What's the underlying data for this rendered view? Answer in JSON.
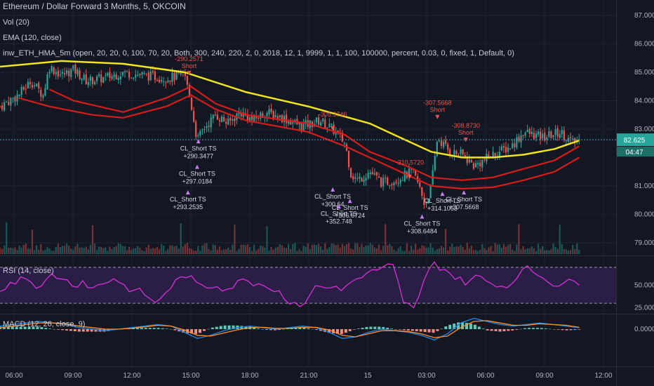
{
  "header": {
    "title": "Ethereum / Dollar Forward 3 Months, 5, OKCOIN",
    "vol_label": "Vol (20)",
    "ema_label": "EMA (120, close)",
    "strategy_label": "inw_ETH_HMA_5m (open, 20, 20, 0, 100, 70, 20, Both, 300, 240, 220, 2, 0, 2018, 12, 1, 9999, 1, 1, 100, 100000, percent, 0.03, 0, fixed, 1, Default, 0)",
    "rsi_label": "RSI (14, close)",
    "macd_label": "MACD (12, 26, close, 9)"
  },
  "colors": {
    "background": "#131722",
    "grid": "#1f2535",
    "candle_up": "#26a69a",
    "candle_down": "#ef5350",
    "ema": "#f0e422",
    "hma": "#d81b1b",
    "rsi": "#d532d5",
    "rsi_band": "#2a1d46",
    "macd": "#1e88e5",
    "signal": "#ff8f2c",
    "trade_entry": "#ef5350",
    "trade_exit": "#c97ef0"
  },
  "chart_data": [
    {
      "type": "candlestick",
      "pane": "price",
      "ylim": [
        78.6,
        87.3
      ],
      "yticks": [
        "87.000",
        "86.000",
        "85.000",
        "84.000",
        "83.000",
        "81.000",
        "80.000",
        "79.000"
      ],
      "last_price": "82.625",
      "countdown": "04:47",
      "x_ticks": [
        "06:00",
        "09:00",
        "12:00",
        "15:00",
        "18:00",
        "21:00",
        "15",
        "03:00",
        "06:00",
        "09:00",
        "12:00"
      ],
      "close_path": [
        [
          0,
          83.8
        ],
        [
          0.03,
          84.2
        ],
        [
          0.05,
          84.7
        ],
        [
          0.07,
          84.2
        ],
        [
          0.08,
          85.2
        ],
        [
          0.1,
          84.9
        ],
        [
          0.12,
          85.1
        ],
        [
          0.14,
          84.7
        ],
        [
          0.17,
          84.8
        ],
        [
          0.2,
          85.0
        ],
        [
          0.23,
          84.9
        ],
        [
          0.27,
          84.8
        ],
        [
          0.3,
          84.9
        ],
        [
          0.31,
          83.9
        ],
        [
          0.32,
          82.6
        ],
        [
          0.33,
          83.0
        ],
        [
          0.35,
          83.5
        ],
        [
          0.37,
          83.2
        ],
        [
          0.39,
          83.6
        ],
        [
          0.41,
          83.3
        ],
        [
          0.43,
          83.6
        ],
        [
          0.46,
          83.4
        ],
        [
          0.49,
          83.1
        ],
        [
          0.52,
          83.3
        ],
        [
          0.54,
          83.0
        ],
        [
          0.56,
          82.5
        ],
        [
          0.57,
          81.4
        ],
        [
          0.58,
          81.2
        ],
        [
          0.6,
          81.5
        ],
        [
          0.62,
          81.1
        ],
        [
          0.64,
          81.2
        ],
        [
          0.67,
          81.5
        ],
        [
          0.68,
          81.0
        ],
        [
          0.69,
          80.3
        ],
        [
          0.7,
          81.0
        ],
        [
          0.71,
          82.7
        ],
        [
          0.73,
          82.2
        ],
        [
          0.75,
          82.1
        ],
        [
          0.77,
          81.7
        ],
        [
          0.8,
          82.1
        ],
        [
          0.83,
          82.4
        ],
        [
          0.85,
          82.9
        ],
        [
          0.88,
          82.7
        ],
        [
          0.91,
          82.9
        ],
        [
          0.93,
          82.5
        ],
        [
          0.94,
          82.6
        ]
      ],
      "series": [
        {
          "name": "EMA (120, close)",
          "points": [
            [
              0,
              85.2
            ],
            [
              0.1,
              85.4
            ],
            [
              0.2,
              85.3
            ],
            [
              0.3,
              85.0
            ],
            [
              0.4,
              84.3
            ],
            [
              0.5,
              83.8
            ],
            [
              0.6,
              83.2
            ],
            [
              0.66,
              82.6
            ],
            [
              0.7,
              82.2
            ],
            [
              0.75,
              82.0
            ],
            [
              0.8,
              82.0
            ],
            [
              0.85,
              82.1
            ],
            [
              0.9,
              82.3
            ],
            [
              0.94,
              82.6
            ]
          ]
        },
        {
          "name": "HMA upper",
          "points": [
            [
              0.08,
              84.4
            ],
            [
              0.12,
              84.0
            ],
            [
              0.2,
              83.6
            ],
            [
              0.27,
              84.1
            ],
            [
              0.31,
              84.5
            ],
            [
              0.35,
              83.9
            ],
            [
              0.4,
              83.5
            ],
            [
              0.5,
              83.2
            ],
            [
              0.56,
              82.8
            ],
            [
              0.6,
              82.2
            ],
            [
              0.66,
              81.7
            ],
            [
              0.7,
              81.3
            ],
            [
              0.75,
              81.2
            ],
            [
              0.8,
              81.3
            ],
            [
              0.85,
              81.6
            ],
            [
              0.9,
              81.9
            ],
            [
              0.94,
              82.4
            ]
          ]
        },
        {
          "name": "HMA lower",
          "points": [
            [
              0.03,
              84.1
            ],
            [
              0.08,
              83.8
            ],
            [
              0.15,
              83.5
            ],
            [
              0.2,
              83.4
            ],
            [
              0.27,
              83.8
            ],
            [
              0.31,
              84.2
            ],
            [
              0.35,
              83.7
            ],
            [
              0.4,
              83.3
            ],
            [
              0.5,
              82.9
            ],
            [
              0.56,
              82.4
            ],
            [
              0.6,
              82.0
            ],
            [
              0.66,
              81.4
            ],
            [
              0.7,
              81.0
            ],
            [
              0.75,
              80.9
            ],
            [
              0.8,
              80.95
            ],
            [
              0.85,
              81.2
            ],
            [
              0.9,
              81.5
            ],
            [
              0.94,
              82.0
            ]
          ]
        }
      ]
    },
    {
      "type": "bar",
      "pane": "volume",
      "title": "Vol (20)"
    },
    {
      "type": "line",
      "pane": "rsi",
      "ylim": [
        20,
        80
      ],
      "yticks": [
        "50.0000",
        "25.0000"
      ],
      "levels": [
        70,
        30
      ],
      "values": [
        45,
        52,
        60,
        55,
        48,
        62,
        58,
        50,
        55,
        47,
        52,
        58,
        50,
        44,
        40,
        30,
        42,
        55,
        60,
        52,
        48,
        50,
        46,
        54,
        56,
        52,
        48,
        44,
        30,
        28,
        40,
        50,
        48,
        44,
        54,
        60,
        66,
        70,
        72,
        30,
        24,
        55,
        75,
        68,
        58,
        52,
        60,
        55,
        50,
        48,
        60,
        70,
        62,
        55,
        50,
        55,
        52
      ]
    },
    {
      "type": "line",
      "pane": "macd",
      "yticks": [
        "0.0000"
      ],
      "series": [
        {
          "name": "MACD",
          "values": [
            0.2,
            0.3,
            0.4,
            0.5,
            0.4,
            0.3,
            0.1,
            0.0,
            -0.1,
            0.0,
            0.1,
            0.2,
            0.3,
            0.2,
            -0.2,
            -0.6,
            -0.4,
            -0.1,
            0.1,
            0.2,
            0.1,
            0.0,
            0.1,
            0.2,
            0.1,
            -0.2,
            -0.6,
            -0.5,
            -0.2,
            0.0,
            -0.1,
            -0.2,
            -0.4,
            -0.7,
            -0.3,
            0.4,
            0.7,
            0.5,
            0.3,
            0.2,
            0.3,
            0.4,
            0.3,
            0.2,
            0.1
          ]
        },
        {
          "name": "Signal",
          "values": [
            0.1,
            0.2,
            0.3,
            0.4,
            0.4,
            0.35,
            0.2,
            0.1,
            0.0,
            0.0,
            0.05,
            0.15,
            0.25,
            0.2,
            -0.05,
            -0.4,
            -0.45,
            -0.25,
            -0.05,
            0.1,
            0.12,
            0.05,
            0.05,
            0.12,
            0.12,
            -0.05,
            -0.4,
            -0.5,
            -0.3,
            -0.1,
            -0.1,
            -0.15,
            -0.3,
            -0.55,
            -0.45,
            0.1,
            0.5,
            0.55,
            0.4,
            0.25,
            0.25,
            0.35,
            0.3,
            0.25,
            0.12
          ]
        }
      ]
    }
  ],
  "annotations": {
    "entries": [
      {
        "label": "-290.2571",
        "x": 0.307,
        "y": 85.15,
        "short": true
      },
      {
        "label": "-307.5668",
        "x": 0.71,
        "y": 83.6,
        "short": true
      },
      {
        "label": "-308.8730",
        "x": 0.756,
        "y": 82.8,
        "short": true
      },
      {
        "label": "-305.3746",
        "x": 0.54,
        "y": 83.2,
        "short": false
      },
      {
        "label": "-310.5720",
        "x": 0.665,
        "y": 81.5,
        "short": false
      }
    ],
    "exits": [
      {
        "label": "CL_Short TS",
        "value": "+290.3477",
        "x": 0.322,
        "y": 82.4
      },
      {
        "label": "CL_Short TS",
        "value": "+297.0184",
        "x": 0.32,
        "y": 81.5
      },
      {
        "label": "CL_Short TS",
        "value": "+293.2535",
        "x": 0.305,
        "y": 80.6
      },
      {
        "label": "CL_Short TS",
        "value": "+300.64",
        "x": 0.54,
        "y": 80.7
      },
      {
        "label": "CL_Short TS",
        "value": "+306.6724",
        "x": 0.568,
        "y": 80.3
      },
      {
        "label": "CL_Short TS",
        "value": "+352.748",
        "x": 0.55,
        "y": 80.1
      },
      {
        "label": "CL_Short TS",
        "value": "+314.1063",
        "x": 0.718,
        "y": 80.55
      },
      {
        "label": "CL_Short TS",
        "value": "+307.5668",
        "x": 0.753,
        "y": 80.6
      },
      {
        "label": "CL_Short TS",
        "value": "+308.6484",
        "x": 0.685,
        "y": 79.75
      }
    ]
  }
}
